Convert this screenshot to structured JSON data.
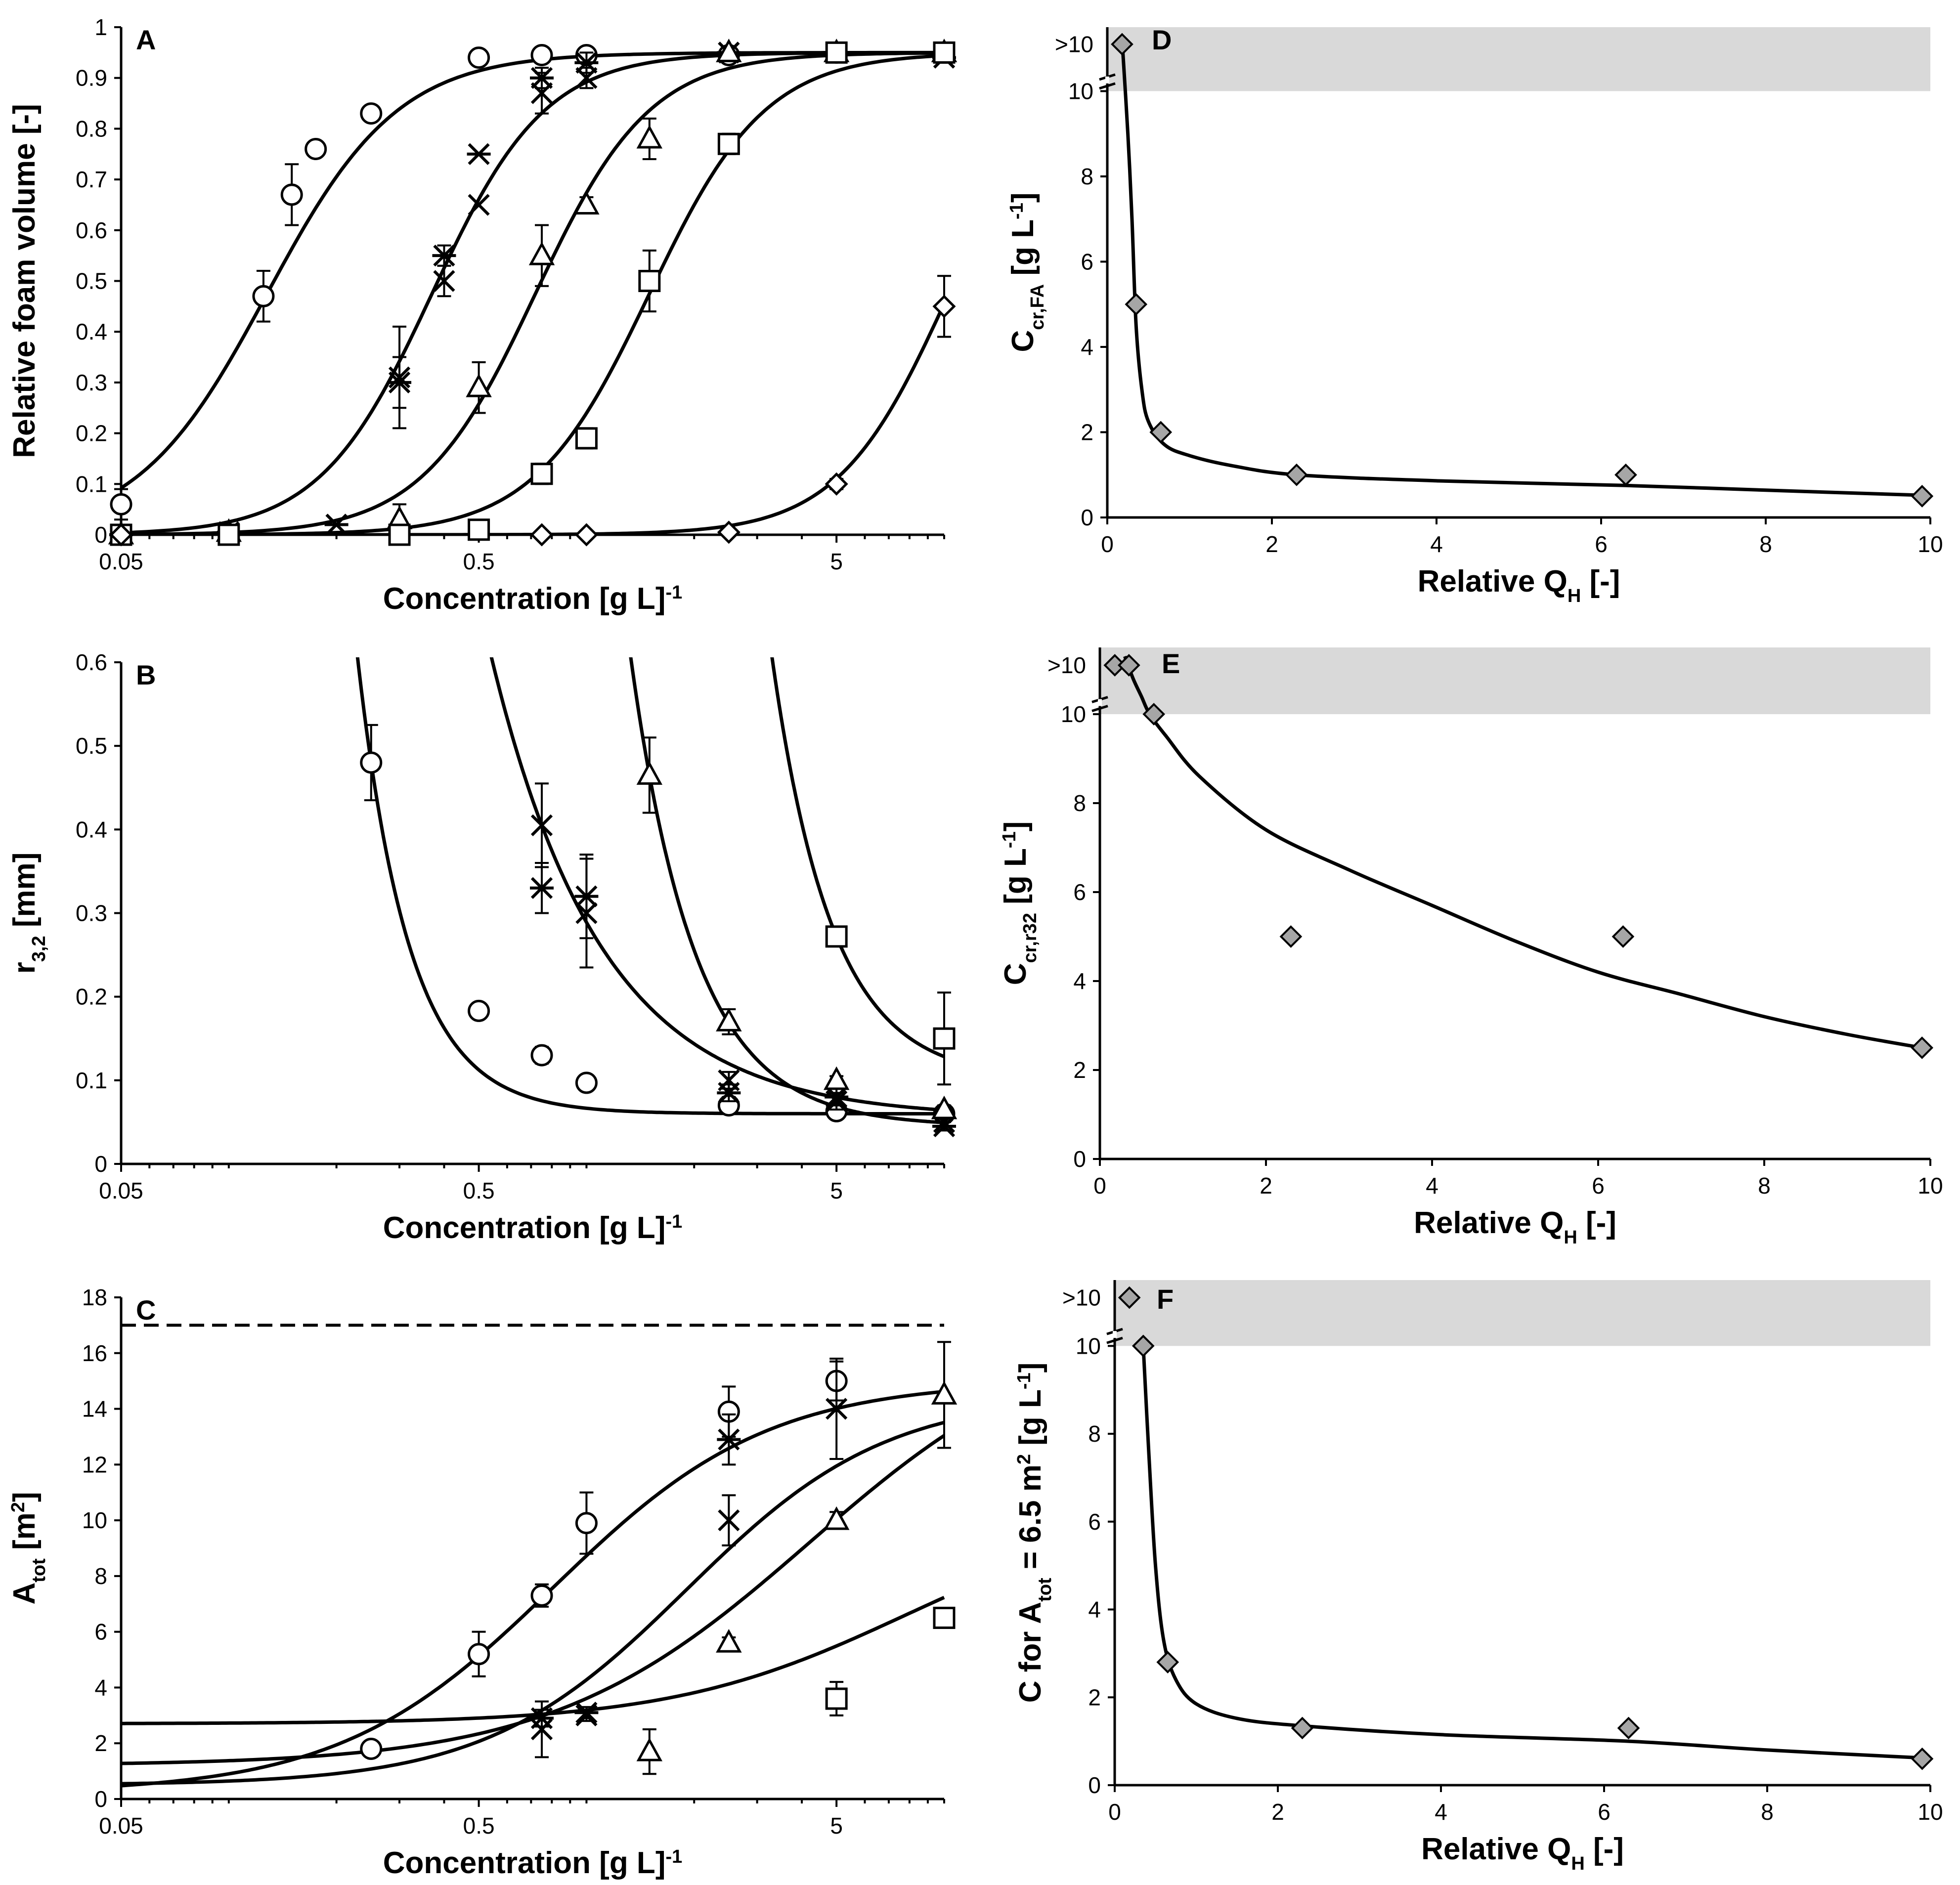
{
  "chart_data": [
    {
      "panel": "A",
      "type": "scatter",
      "xscale": "log",
      "xlabel": "Concentration [g L-1]",
      "xlabel_parts": {
        "main": "Concentration [g L",
        "sup": "-1",
        "end": "]"
      },
      "ylabel": "Relative foam volume [-]",
      "xlim": [
        0.05,
        10
      ],
      "ylim": [
        0,
        1
      ],
      "xticks": [
        0.05,
        0.5,
        5
      ],
      "xtick_labels": [
        "0.05",
        "0.5",
        "5"
      ],
      "yticks": [
        0,
        0.1,
        0.2,
        0.3,
        0.4,
        0.5,
        0.6,
        0.7,
        0.8,
        0.9,
        1
      ],
      "ytick_labels": [
        "0",
        "0.1",
        "0.2",
        "0.3",
        "0.4",
        "0.5",
        "0.6",
        "0.7",
        "0.8",
        "0.9",
        "1"
      ],
      "series": [
        {
          "marker": "circle",
          "x": [
            0.05,
            0.125,
            0.15,
            0.175,
            0.25,
            0.5,
            0.75,
            1,
            2.5,
            5,
            10
          ],
          "y": [
            0.06,
            0.47,
            0.67,
            0.76,
            0.83,
            0.94,
            0.945,
            0.945,
            0.945,
            0.95,
            0.95
          ],
          "err": [
            0.03,
            0.05,
            0.06,
            0.015,
            0.015,
            0.01,
            0.01,
            0.015,
            0.01,
            0.01,
            0.01
          ],
          "fit": {
            "type": "logistic",
            "top": 0.95,
            "mid": 0.128,
            "w": 0.183,
            "range": [
              0.05,
              10
            ]
          }
        },
        {
          "marker": "x",
          "x": [
            0.05,
            0.1,
            0.2,
            0.3,
            0.4,
            0.5,
            0.75,
            1,
            2.5,
            5,
            10
          ],
          "y": [
            0,
            0.005,
            0.02,
            0.31,
            0.5,
            0.65,
            0.87,
            0.9,
            0.95,
            0.95,
            0.94
          ],
          "err": [
            0,
            0,
            0,
            0.1,
            0.03,
            0,
            0.04,
            0.02,
            0.01,
            0.01,
            0.01
          ],
          "fit": {
            "type": "logistic",
            "top": 0.95,
            "mid": 0.37,
            "w": 0.158,
            "range": [
              0.05,
              10
            ]
          }
        },
        {
          "marker": "star",
          "x": [
            0.05,
            0.1,
            0.2,
            0.3,
            0.4,
            0.5,
            0.75,
            1,
            2.5,
            5,
            10
          ],
          "y": [
            0,
            0.005,
            0.02,
            0.3,
            0.55,
            0.75,
            0.9,
            0.93,
            0.95,
            0.95,
            0.94
          ],
          "err": [
            0,
            0,
            0,
            0.05,
            0.02,
            0,
            0.02,
            0.02,
            0.01,
            0.01,
            0.01
          ]
        },
        {
          "marker": "triangle",
          "x": [
            0.05,
            0.1,
            0.3,
            0.5,
            0.75,
            1,
            1.5,
            2.5,
            5,
            10
          ],
          "y": [
            0,
            0.005,
            0.03,
            0.29,
            0.55,
            0.65,
            0.78,
            0.95,
            0.95,
            0.95
          ],
          "err": [
            0,
            0,
            0.03,
            0.05,
            0.06,
            0.015,
            0.04,
            0.01,
            0.01,
            0.01
          ],
          "fit": {
            "type": "logistic",
            "top": 0.95,
            "mid": 0.72,
            "w": 0.16,
            "range": [
              0.05,
              10
            ]
          }
        },
        {
          "marker": "square",
          "x": [
            0.05,
            0.1,
            0.3,
            0.5,
            0.75,
            1,
            1.5,
            2.5,
            5,
            10
          ],
          "y": [
            0,
            0,
            0,
            0.01,
            0.12,
            0.19,
            0.5,
            0.77,
            0.95,
            0.95
          ],
          "err": [
            0,
            0,
            0,
            0.01,
            0.02,
            0.02,
            0.06,
            0.02,
            0.01,
            0.01
          ],
          "fit": {
            "type": "logistic",
            "top": 0.95,
            "mid": 1.5,
            "w": 0.162,
            "range": [
              0.05,
              10
            ]
          }
        },
        {
          "marker": "diamond",
          "x": [
            0.05,
            0.75,
            1,
            2.5,
            5,
            10
          ],
          "y": [
            0,
            0,
            0,
            0.005,
            0.1,
            0.45
          ],
          "err": [
            0,
            0,
            0,
            0,
            0.01,
            0.06
          ],
          "fit": {
            "type": "logistic",
            "top": 0.95,
            "mid": 10.3,
            "w": 0.155,
            "range": [
              0.05,
              10
            ]
          }
        }
      ]
    },
    {
      "panel": "B",
      "type": "scatter",
      "xscale": "log",
      "xlabel": "Concentration [g L-1]",
      "xlabel_parts": {
        "main": "Concentration [g L",
        "sup": "-1",
        "end": "]"
      },
      "ylabel": "r3,2 [mm]",
      "ylabel_parts": {
        "main": "r",
        "sub": "3,2",
        "end": " [mm]"
      },
      "xlim": [
        0.05,
        10
      ],
      "ylim": [
        0,
        0.6
      ],
      "xticks": [
        0.05,
        0.5,
        5
      ],
      "xtick_labels": [
        "0.05",
        "0.5",
        "5"
      ],
      "yticks": [
        0,
        0.1,
        0.2,
        0.3,
        0.4,
        0.5,
        0.6
      ],
      "ytick_labels": [
        "0",
        "0.1",
        "0.2",
        "0.3",
        "0.4",
        "0.5",
        "0.6"
      ],
      "series": [
        {
          "marker": "circle",
          "x": [
            0.25,
            0.5,
            0.75,
            1,
            2.5,
            5,
            10
          ],
          "y": [
            0.48,
            0.183,
            0.13,
            0.097,
            0.07,
            0.063,
            0.06
          ],
          "err": [
            0.045,
            0.005,
            0.01,
            0.005,
            0.01,
            0.005,
            0.005
          ],
          "fit": {
            "type": "decay",
            "floor": 0.06,
            "amp": 0.42,
            "c0": 0.25,
            "p": 3.0,
            "range": [
              0.2,
              10
            ]
          }
        },
        {
          "marker": "x",
          "x": [
            0.75,
            1,
            2.5,
            5,
            10
          ],
          "y": [
            0.405,
            0.3,
            0.1,
            0.075,
            0.05
          ],
          "err": [
            0.05,
            0.065,
            0.01,
            0.01,
            0.005
          ],
          "fit": {
            "type": "decay",
            "floor": 0.055,
            "amp": 0.35,
            "c0": 0.75,
            "p": 1.4,
            "range": [
              0.52,
              10
            ]
          }
        },
        {
          "marker": "star",
          "x": [
            0.75,
            1,
            2.5,
            5,
            10
          ],
          "y": [
            0.33,
            0.32,
            0.085,
            0.08,
            0.045
          ],
          "err": [
            0.03,
            0.05,
            0.01,
            0.01,
            0.005
          ]
        },
        {
          "marker": "triangle",
          "x": [
            1.5,
            2.5,
            5,
            10
          ],
          "y": [
            0.465,
            0.17,
            0.1,
            0.065
          ],
          "err": [
            0.045,
            0.015,
            0.005,
            0.005
          ],
          "fit": {
            "type": "decay",
            "floor": 0.045,
            "amp": 0.42,
            "c0": 1.5,
            "p": 2.4,
            "range": [
              0.92,
              10
            ]
          }
        },
        {
          "marker": "square",
          "x": [
            5,
            10
          ],
          "y": [
            0.272,
            0.15
          ],
          "err": [
            0.007,
            0.055
          ],
          "fit": {
            "type": "decay",
            "floor": 0.1,
            "amp": 0.172,
            "c0": 5,
            "p": 2.6,
            "range": [
              2.55,
              10
            ]
          }
        }
      ]
    },
    {
      "panel": "C",
      "type": "scatter",
      "xscale": "log",
      "xlabel": "Concentration [g L-1]",
      "xlabel_parts": {
        "main": "Concentration [g L",
        "sup": "-1",
        "end": "]"
      },
      "ylabel": "Atot [m2]",
      "ylabel_parts": {
        "main": "A",
        "sub": "tot",
        "end": " [m",
        "sup": "2",
        "end2": "]"
      },
      "xlim": [
        0.05,
        10
      ],
      "ylim": [
        0,
        18
      ],
      "xticks": [
        0.05,
        0.5,
        5
      ],
      "xtick_labels": [
        "0.05",
        "0.5",
        "5"
      ],
      "yticks": [
        0,
        2,
        4,
        6,
        8,
        10,
        12,
        14,
        16,
        18
      ],
      "ytick_labels": [
        "0",
        "2",
        "4",
        "6",
        "8",
        "10",
        "12",
        "14",
        "16",
        "18"
      ],
      "reference_line": {
        "y": 17,
        "style": "dashed"
      },
      "series": [
        {
          "marker": "circle",
          "x": [
            0.25,
            0.5,
            0.75,
            1,
            2.5,
            5
          ],
          "y": [
            1.8,
            5.2,
            7.3,
            9.9,
            13.9,
            15
          ],
          "err": [
            0.1,
            0.8,
            0.4,
            1.1,
            0.9,
            0.7
          ],
          "fit": {
            "type": "logistic",
            "top": 15.0,
            "mid": 0.81,
            "w": 0.3,
            "base": 0.22,
            "range": [
              0.05,
              10
            ]
          }
        },
        {
          "marker": "x",
          "x": [
            0.75,
            1,
            2.5,
            5
          ],
          "y": [
            2.5,
            3.0,
            10.0,
            14.0
          ],
          "err": [
            1.0,
            0.2,
            0.9,
            1.8
          ],
          "fit": {
            "type": "logistic",
            "top": 14.5,
            "mid": 1.9,
            "w": 0.28,
            "base": 0.5,
            "range": [
              0.05,
              10
            ]
          }
        },
        {
          "marker": "star",
          "x": [
            0.75,
            1,
            2.5
          ],
          "y": [
            2.9,
            3.1,
            12.9
          ],
          "err": [
            0.3,
            0.2,
            0.9
          ]
        },
        {
          "marker": "triangle",
          "x": [
            1.5,
            2.5,
            5,
            10
          ],
          "y": [
            1.7,
            5.6,
            10.0,
            14.5
          ],
          "err": [
            0.8,
            0.2,
            0.3,
            1.9
          ],
          "fit": {
            "type": "logistic",
            "top": 17.2,
            "mid": 4.2,
            "w": 0.36,
            "base": 1.2,
            "range": [
              0.05,
              10
            ]
          }
        },
        {
          "marker": "square",
          "x": [
            5,
            10
          ],
          "y": [
            3.6,
            6.5
          ],
          "err": [
            0.6,
            0.1
          ],
          "fit": {
            "type": "logistic",
            "top": 10.5,
            "mid": 7.8,
            "w": 0.33,
            "base": 2.7,
            "range": [
              0.05,
              10
            ]
          }
        }
      ]
    },
    {
      "panel": "D",
      "type": "scatter",
      "xscale": "linear",
      "xlabel": "Relative QH [-]",
      "xlabel_parts": {
        "main": "Relative Q",
        "sub": "H",
        "end": " [-]"
      },
      "ylabel": "Ccr,FA [g L-1]",
      "ylabel_parts": {
        "main": "C",
        "sub": "cr,FA",
        "end": " [g L",
        "sup": "-1",
        "end2": "]"
      },
      "xlim": [
        0,
        10
      ],
      "ylim": [
        0,
        11.5
      ],
      "xticks": [
        0,
        2,
        4,
        6,
        8,
        10
      ],
      "xtick_labels": [
        "0",
        "2",
        "4",
        "6",
        "8",
        "10"
      ],
      "yticks": [
        0,
        2,
        4,
        6,
        8,
        10
      ],
      "ytick_labels": [
        "0",
        "2",
        "4",
        "6",
        "8",
        "10"
      ],
      "gray_band": {
        "label": ">10",
        "y_from": 10,
        "y_to": 11.5
      },
      "series": [
        {
          "marker": "diamond-filled",
          "x": [
            0.18,
            0.35,
            0.65,
            2.3,
            6.3,
            9.9
          ],
          "y": [
            11.1,
            5.0,
            2.0,
            1.0,
            1.0,
            0.5
          ],
          "fit": {
            "type": "pts",
            "x": [
              0.18,
              0.25,
              0.3,
              0.35,
              0.42,
              0.5,
              0.7,
              1.0,
              1.5,
              2.3,
              4.0,
              6.3,
              8.0,
              9.9
            ],
            "y": [
              11.2,
              9.0,
              7.0,
              4.5,
              3.0,
              2.25,
              1.7,
              1.45,
              1.22,
              1.0,
              0.86,
              0.75,
              0.64,
              0.52
            ]
          }
        }
      ]
    },
    {
      "panel": "E",
      "type": "scatter",
      "xscale": "linear",
      "xlabel": "Relative QH [-]",
      "xlabel_parts": {
        "main": "Relative Q",
        "sub": "H",
        "end": " [-]"
      },
      "ylabel": "Ccr,r32 [g L-1]",
      "ylabel_parts": {
        "main": "C",
        "sub": "cr,r32",
        "end": " [g L",
        "sup": "-1",
        "end2": "]"
      },
      "xlim": [
        0,
        10
      ],
      "ylim": [
        0,
        11.5
      ],
      "xticks": [
        0,
        2,
        4,
        6,
        8,
        10
      ],
      "xtick_labels": [
        "0",
        "2",
        "4",
        "6",
        "8",
        "10"
      ],
      "yticks": [
        0,
        2,
        4,
        6,
        8,
        10
      ],
      "ytick_labels": [
        "0",
        "2",
        "4",
        "6",
        "8",
        "10"
      ],
      "gray_band": {
        "label": ">10",
        "y_from": 10,
        "y_to": 11.5
      },
      "series": [
        {
          "marker": "diamond-filled",
          "x": [
            0.18,
            0.35,
            0.65,
            2.3,
            6.3,
            9.9
          ],
          "y": [
            11.1,
            11.1,
            10.0,
            5.0,
            5.0,
            2.5
          ],
          "fit": {
            "type": "pts",
            "x": [
              0.3,
              0.4,
              0.5,
              0.6,
              0.8,
              1.2,
              2.0,
              3.0,
              4.0,
              5.0,
              6.0,
              7.0,
              8.0,
              9.0,
              9.9
            ],
            "y": [
              11.3,
              10.8,
              10.4,
              10.0,
              9.5,
              8.6,
              7.4,
              6.5,
              5.7,
              4.9,
              4.2,
              3.7,
              3.2,
              2.8,
              2.5
            ]
          }
        }
      ]
    },
    {
      "panel": "F",
      "type": "scatter",
      "xscale": "linear",
      "xlabel": "Relative QH [-]",
      "xlabel_parts": {
        "main": "Relative Q",
        "sub": "H",
        "end": " [-]"
      },
      "ylabel": "C for Atot = 6.5 m2 [g L-1]",
      "ylabel_parts": {
        "main": "C for A",
        "sub": "tot",
        "end": " = 6.5 m",
        "sup": "2",
        "end2": " [g L",
        "sup2": "-1",
        "end3": "]"
      },
      "xlim": [
        0,
        10
      ],
      "ylim": [
        0,
        11.5
      ],
      "xticks": [
        0,
        2,
        4,
        6,
        8,
        10
      ],
      "xtick_labels": [
        "0",
        "2",
        "4",
        "6",
        "8",
        "10"
      ],
      "yticks": [
        0,
        2,
        4,
        6,
        8,
        10
      ],
      "ytick_labels": [
        "0",
        "2",
        "4",
        "6",
        "8",
        "10"
      ],
      "gray_band": {
        "label": ">10",
        "y_from": 10,
        "y_to": 11.5
      },
      "series": [
        {
          "marker": "diamond-filled",
          "x": [
            0.18,
            0.35,
            0.65,
            2.3,
            6.3,
            9.9
          ],
          "y": [
            11.1,
            10.0,
            2.8,
            1.3,
            1.3,
            0.6
          ],
          "fit": {
            "type": "pts",
            "x": [
              0.35,
              0.42,
              0.5,
              0.6,
              0.75,
              1.0,
              1.5,
              2.3,
              4.0,
              6.3,
              8.0,
              9.9
            ],
            "y": [
              10.0,
              7.5,
              5.0,
              3.3,
              2.4,
              1.85,
              1.52,
              1.35,
              1.15,
              1.0,
              0.8,
              0.62
            ]
          }
        }
      ]
    }
  ]
}
